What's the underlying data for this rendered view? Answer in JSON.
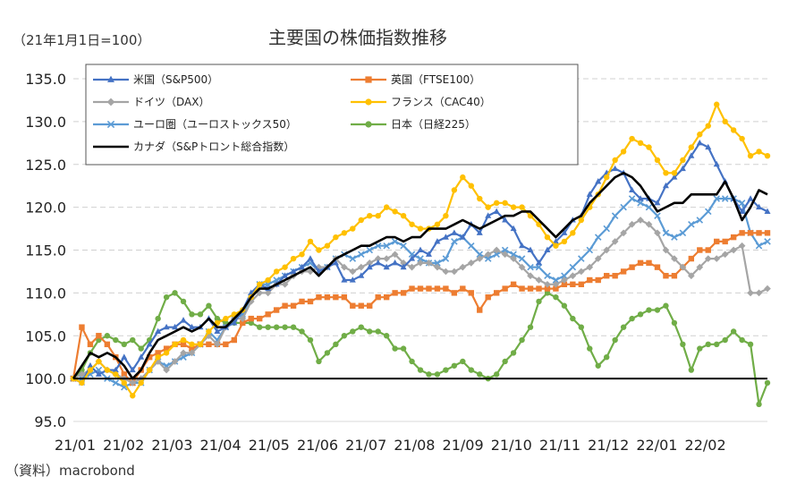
{
  "chart_data": {
    "type": "line",
    "title": "主要国の株価指数推移",
    "index_note": "（21年1月1日=100）",
    "source_note": "（資料）macrobond",
    "ylim": [
      95,
      135
    ],
    "y_ticks": [
      {
        "value": 95,
        "label": "95.0"
      },
      {
        "value": 100,
        "label": "100.0"
      },
      {
        "value": 105,
        "label": "105.0"
      },
      {
        "value": 110,
        "label": "110.0"
      },
      {
        "value": 115,
        "label": "115.0"
      },
      {
        "value": 120,
        "label": "120.0"
      },
      {
        "value": 125,
        "label": "125.0"
      },
      {
        "value": 130,
        "label": "130.0"
      },
      {
        "value": 135,
        "label": "135.0"
      }
    ],
    "x_ticks": [
      "21/01",
      "21/02",
      "21/03",
      "21/04",
      "21/05",
      "21/06",
      "21/07",
      "21/08",
      "21/09",
      "21/10",
      "21/11",
      "21/12",
      "22/01",
      "22/02"
    ],
    "baseline": 100,
    "series": [
      {
        "name": "米国（S&P500）",
        "color": "#4472C4",
        "marker": "triangle",
        "values": [
          100,
          99.5,
          101.5,
          100.5,
          101,
          101,
          102.5,
          101,
          102.5,
          104,
          105.5,
          106,
          106,
          106.8,
          106,
          106,
          107,
          105.5,
          106,
          106.5,
          108,
          110,
          111,
          110.5,
          111,
          112,
          112.5,
          113,
          114,
          112.5,
          113,
          113.5,
          111.5,
          111.5,
          112,
          113,
          113.5,
          113,
          113.5,
          113,
          114,
          115,
          114.5,
          116,
          116.5,
          117,
          116.5,
          118,
          117,
          119,
          119.5,
          118.5,
          117.5,
          115.5,
          115,
          113.5,
          115,
          116,
          117,
          118.5,
          119,
          121.5,
          123,
          124,
          124.5,
          124,
          122,
          121,
          121,
          120.5,
          122.5,
          123.5,
          124.5,
          126,
          127.5,
          127,
          125,
          123,
          121,
          119.5,
          121,
          120,
          119.5
        ]
      },
      {
        "name": "英国（FTSE100）",
        "color": "#ED7D31",
        "marker": "square",
        "values": [
          100,
          106,
          104,
          105,
          104,
          102.5,
          100.5,
          99.5,
          101,
          102.5,
          103,
          103.5,
          104,
          104,
          103.5,
          104,
          104,
          104,
          104,
          104.5,
          106.5,
          107,
          107,
          107.5,
          108,
          108.5,
          108.5,
          109,
          109,
          109.5,
          109.5,
          109.5,
          109.5,
          108.5,
          108.5,
          108.5,
          109.5,
          109.5,
          110,
          110,
          110.5,
          110.5,
          110.5,
          110.5,
          110.5,
          110,
          110.5,
          110,
          108,
          109.5,
          110,
          110.5,
          111,
          110.5,
          110.5,
          110.5,
          110.5,
          110.5,
          111,
          111,
          111,
          111.5,
          111.5,
          112,
          112,
          112.5,
          113,
          113.5,
          113.5,
          113,
          112,
          112,
          113,
          114,
          115,
          115,
          116,
          116,
          116.5,
          117,
          117,
          117,
          117
        ]
      },
      {
        "name": "ドイツ（DAX）",
        "color": "#A5A5A5",
        "marker": "diamond",
        "values": [
          100,
          100.5,
          101,
          102,
          101,
          100.5,
          100,
          99.5,
          100,
          101,
          102,
          101,
          102,
          103,
          103,
          104,
          105,
          104,
          106,
          107,
          107,
          109,
          110,
          110,
          111,
          111,
          112,
          112.5,
          112.5,
          113,
          113,
          114,
          113,
          112.5,
          113,
          113.5,
          114,
          114,
          114.5,
          113.5,
          113,
          113.5,
          113.5,
          113,
          112.5,
          112.5,
          113,
          113.5,
          114,
          114.5,
          115,
          114.5,
          114,
          113,
          112,
          111.5,
          111,
          111,
          111.5,
          112,
          112.5,
          113,
          114,
          115,
          116,
          117,
          118,
          118.5,
          118,
          117,
          115,
          114,
          113,
          112,
          113,
          114,
          114,
          114.5,
          115,
          115.5,
          110,
          110,
          110.5
        ]
      },
      {
        "name": "フランス（CAC40）",
        "color": "#FFC000",
        "marker": "circle",
        "values": [
          100,
          99.5,
          101,
          102,
          101,
          100.5,
          99.5,
          98,
          99.5,
          101,
          102.5,
          103,
          104,
          104.5,
          104,
          104,
          105.5,
          106.5,
          107,
          107.5,
          108,
          109.5,
          111,
          111.5,
          112.5,
          113,
          114,
          114.5,
          116,
          115,
          115.5,
          116.5,
          117,
          117.5,
          118.5,
          119,
          119,
          120,
          119.5,
          119,
          118,
          117.5,
          117.5,
          118,
          119,
          122,
          123.5,
          122.5,
          121,
          120,
          120.5,
          120.5,
          120,
          120,
          119,
          118,
          116.5,
          115.5,
          116,
          117,
          118.5,
          120,
          121.5,
          123.5,
          125.5,
          126.5,
          128,
          127.5,
          127,
          125.5,
          124,
          124,
          125.5,
          127,
          128.5,
          129.5,
          132,
          130,
          129,
          128,
          126,
          126.5,
          126
        ]
      },
      {
        "name": "ユーロ圏（ユーロストックス50）",
        "color": "#5B9BD5",
        "marker": "x",
        "values": [
          100,
          100,
          100.5,
          101,
          100,
          99.5,
          99,
          99.5,
          99.5,
          101,
          102,
          101.5,
          102,
          102.5,
          103,
          104,
          105.5,
          104.5,
          106,
          107,
          107.5,
          109.5,
          111,
          111,
          111.5,
          112,
          112.5,
          113,
          113.5,
          112.5,
          113,
          114,
          114.5,
          114,
          114.5,
          115,
          115.5,
          115.5,
          116,
          115.5,
          114.5,
          114,
          113.5,
          113.5,
          114,
          116,
          116.5,
          115.5,
          114.5,
          114,
          114.5,
          115,
          114.5,
          114,
          113,
          113,
          112,
          111.5,
          112,
          113,
          114,
          115,
          116.5,
          117.5,
          119,
          120,
          121,
          120.5,
          120,
          119,
          117,
          116.5,
          117,
          118,
          118.5,
          119.5,
          121,
          121,
          121,
          120.5,
          117,
          115.5,
          116
        ]
      },
      {
        "name": "日本（日経225）",
        "color": "#70AD47",
        "marker": "circle",
        "values": [
          100,
          101,
          103,
          104.5,
          105,
          104.5,
          104,
          104.5,
          103.5,
          104.5,
          107,
          109.5,
          110,
          109,
          107.5,
          107.5,
          108.5,
          107,
          106.5,
          106.5,
          106.5,
          106.5,
          106,
          106,
          106,
          106,
          106,
          105.5,
          104.5,
          102,
          103,
          104,
          105,
          105.5,
          106,
          105.5,
          105.5,
          105,
          103.5,
          103.5,
          102,
          101,
          100.5,
          100.5,
          101,
          101.5,
          102,
          101,
          100.5,
          100,
          100.5,
          102,
          103,
          104.5,
          106,
          109,
          110,
          109.5,
          108.5,
          107,
          106,
          103.5,
          101.5,
          102.5,
          104.5,
          106,
          107,
          107.5,
          108,
          108,
          108.5,
          106.5,
          104,
          101,
          103.5,
          104,
          104,
          104.5,
          105.5,
          104.5,
          104,
          97,
          99.5
        ]
      },
      {
        "name": "カナダ（S&Pトロント総合指数）",
        "color": "#000000",
        "marker": "none",
        "values": [
          100,
          101.5,
          103,
          102.5,
          103,
          102.5,
          101.5,
          100,
          101,
          103,
          104.5,
          105,
          105.5,
          106,
          105.5,
          106,
          107,
          106,
          106,
          107,
          108,
          109.5,
          110.5,
          110.5,
          111,
          111.5,
          112,
          112.5,
          113,
          112,
          113,
          114,
          114.5,
          115,
          115.5,
          115.5,
          116,
          116.5,
          116.5,
          116,
          116.5,
          116.5,
          117.5,
          117.5,
          117.5,
          118,
          118.5,
          118,
          117.5,
          118,
          118.5,
          119,
          119,
          119.5,
          119.5,
          118.5,
          117.5,
          116.5,
          117.5,
          118.5,
          119,
          120.5,
          121.5,
          122.5,
          123.5,
          124,
          123.5,
          122.5,
          121,
          119.5,
          120,
          120.5,
          120.5,
          121.5,
          121.5,
          121.5,
          121.5,
          123,
          121,
          118.5,
          120,
          122,
          121.5
        ]
      }
    ]
  }
}
